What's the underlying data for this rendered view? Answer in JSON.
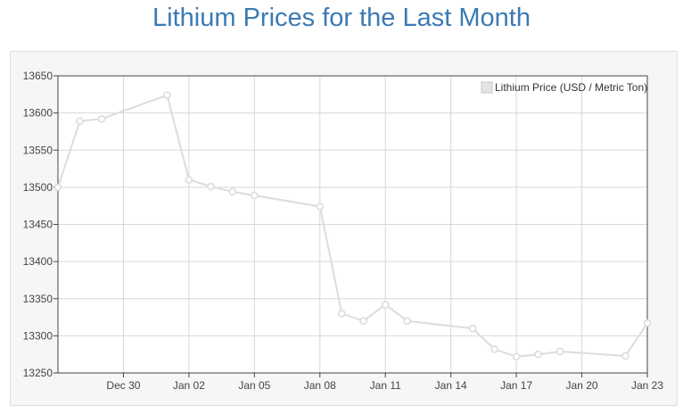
{
  "page": {
    "title": "Lithium Prices for the Last Month"
  },
  "colors": {
    "title": "#3b7ab4",
    "series_line": "#dcdcdc",
    "grid": "#d8d8d8",
    "axis": "#444444"
  },
  "chart_data": {
    "type": "line",
    "title": "Lithium Prices for the Last Month",
    "xlabel": "",
    "ylabel": "",
    "legend_position": "top-right",
    "grid": true,
    "ylim": [
      13250,
      13650
    ],
    "xlim": [
      "2024-12-27",
      "2025-01-23"
    ],
    "y_ticks": [
      13250,
      13300,
      13350,
      13400,
      13450,
      13500,
      13550,
      13600,
      13650
    ],
    "x_ticks": [
      {
        "date": "2024-12-30",
        "label": "Dec 30"
      },
      {
        "date": "2025-01-02",
        "label": "Jan 02"
      },
      {
        "date": "2025-01-05",
        "label": "Jan 05"
      },
      {
        "date": "2025-01-08",
        "label": "Jan 08"
      },
      {
        "date": "2025-01-11",
        "label": "Jan 11"
      },
      {
        "date": "2025-01-14",
        "label": "Jan 14"
      },
      {
        "date": "2025-01-17",
        "label": "Jan 17"
      },
      {
        "date": "2025-01-20",
        "label": "Jan 20"
      },
      {
        "date": "2025-01-23",
        "label": "Jan 23"
      }
    ],
    "series": [
      {
        "name": "Lithium Price (USD / Metric Ton)",
        "points": [
          {
            "x": "2024-12-27",
            "y": 13500
          },
          {
            "x": "2024-12-28",
            "y": 13589
          },
          {
            "x": "2024-12-29",
            "y": 13592
          },
          {
            "x": "2025-01-01",
            "y": 13624
          },
          {
            "x": "2025-01-02",
            "y": 13510
          },
          {
            "x": "2025-01-03",
            "y": 13501
          },
          {
            "x": "2025-01-04",
            "y": 13494
          },
          {
            "x": "2025-01-05",
            "y": 13489
          },
          {
            "x": "2025-01-08",
            "y": 13474
          },
          {
            "x": "2025-01-09",
            "y": 13330
          },
          {
            "x": "2025-01-10",
            "y": 13320
          },
          {
            "x": "2025-01-11",
            "y": 13342
          },
          {
            "x": "2025-01-12",
            "y": 13320
          },
          {
            "x": "2025-01-15",
            "y": 13310
          },
          {
            "x": "2025-01-16",
            "y": 13282
          },
          {
            "x": "2025-01-17",
            "y": 13272
          },
          {
            "x": "2025-01-18",
            "y": 13275
          },
          {
            "x": "2025-01-19",
            "y": 13279
          },
          {
            "x": "2025-01-22",
            "y": 13273
          },
          {
            "x": "2025-01-23",
            "y": 13317
          }
        ]
      }
    ]
  }
}
